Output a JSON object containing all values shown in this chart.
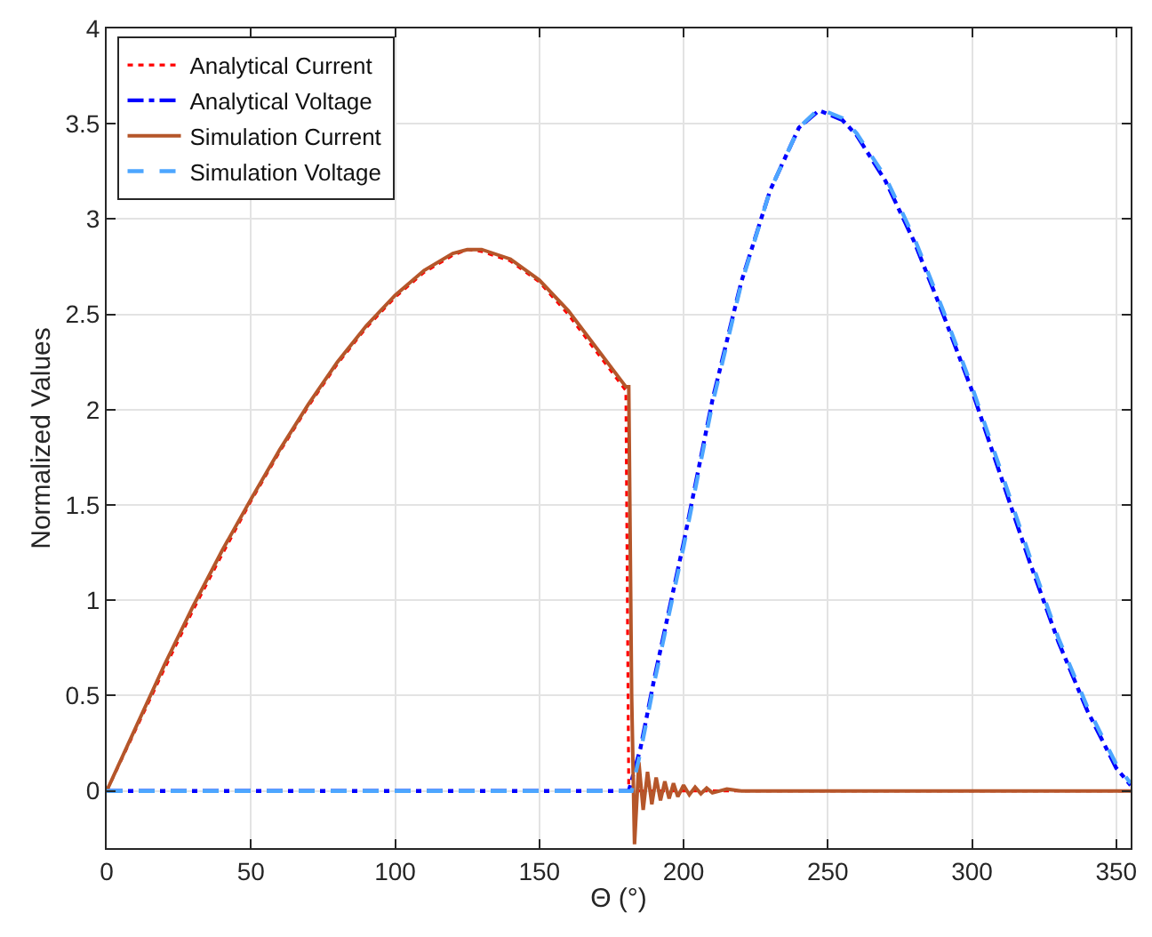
{
  "chart_data": {
    "type": "line",
    "xlabel": "Θ (°)",
    "ylabel": "Normalized Values",
    "xlim": [
      0,
      355
    ],
    "ylim": [
      -0.3,
      4
    ],
    "xticks": [
      0,
      50,
      100,
      150,
      200,
      250,
      300,
      350
    ],
    "yticks": [
      0,
      0.5,
      1,
      1.5,
      2,
      2.5,
      3,
      3.5,
      4
    ],
    "grid": true,
    "legend": "top left",
    "marker": "none",
    "series": [
      {
        "name": "Analytical Current",
        "color": "#ff0000",
        "line_style": "dotted",
        "x": [
          0,
          10,
          20,
          30,
          40,
          50,
          60,
          70,
          80,
          90,
          100,
          110,
          120,
          125,
          130,
          140,
          150,
          160,
          170,
          180,
          181,
          182,
          355
        ],
        "values": [
          0,
          0.32,
          0.64,
          0.95,
          1.24,
          1.52,
          1.78,
          2.02,
          2.24,
          2.43,
          2.59,
          2.72,
          2.81,
          2.84,
          2.83,
          2.78,
          2.67,
          2.5,
          2.3,
          2.1,
          0,
          0,
          0
        ]
      },
      {
        "name": "Analytical Voltage",
        "color": "#0000ff",
        "line_style": "dashdot",
        "x": [
          0,
          181,
          185,
          190,
          200,
          210,
          220,
          230,
          240,
          247,
          255,
          260,
          270,
          280,
          290,
          300,
          310,
          320,
          330,
          340,
          350,
          355
        ],
        "values": [
          0,
          0,
          0.22,
          0.6,
          1.3,
          2.05,
          2.67,
          3.15,
          3.48,
          3.57,
          3.52,
          3.44,
          3.2,
          2.88,
          2.5,
          2.1,
          1.65,
          1.2,
          0.78,
          0.42,
          0.12,
          0.03
        ]
      },
      {
        "name": "Simulation Current",
        "color": "#b5562a",
        "line_style": "solid",
        "x": [
          0,
          10,
          20,
          30,
          40,
          50,
          60,
          70,
          80,
          90,
          100,
          110,
          120,
          125,
          130,
          140,
          150,
          160,
          170,
          180,
          181,
          182,
          183,
          184.5,
          186,
          187.5,
          189,
          190.5,
          192,
          193.5,
          195,
          196.5,
          198,
          200,
          202,
          204,
          206,
          208,
          210,
          215,
          220,
          355
        ],
        "values": [
          0,
          0.33,
          0.66,
          0.97,
          1.26,
          1.53,
          1.79,
          2.03,
          2.25,
          2.44,
          2.6,
          2.73,
          2.82,
          2.84,
          2.84,
          2.79,
          2.68,
          2.52,
          2.32,
          2.12,
          2.12,
          0.5,
          -0.28,
          0.15,
          -0.1,
          0.1,
          -0.07,
          0.07,
          -0.05,
          0.05,
          -0.04,
          0.04,
          -0.03,
          0.03,
          -0.02,
          0.02,
          -0.015,
          0.015,
          -0.01,
          0.01,
          0,
          0
        ]
      },
      {
        "name": "Simulation Voltage",
        "color": "#4da6ff",
        "line_style": "dashed",
        "x": [
          0,
          182,
          185,
          190,
          200,
          210,
          220,
          230,
          240,
          247,
          255,
          260,
          270,
          280,
          290,
          300,
          310,
          320,
          330,
          340,
          350,
          355
        ],
        "values": [
          0,
          0,
          0.2,
          0.58,
          1.28,
          2.03,
          2.66,
          3.15,
          3.48,
          3.58,
          3.53,
          3.45,
          3.22,
          2.9,
          2.52,
          2.12,
          1.68,
          1.23,
          0.8,
          0.44,
          0.14,
          0.04
        ]
      }
    ]
  }
}
